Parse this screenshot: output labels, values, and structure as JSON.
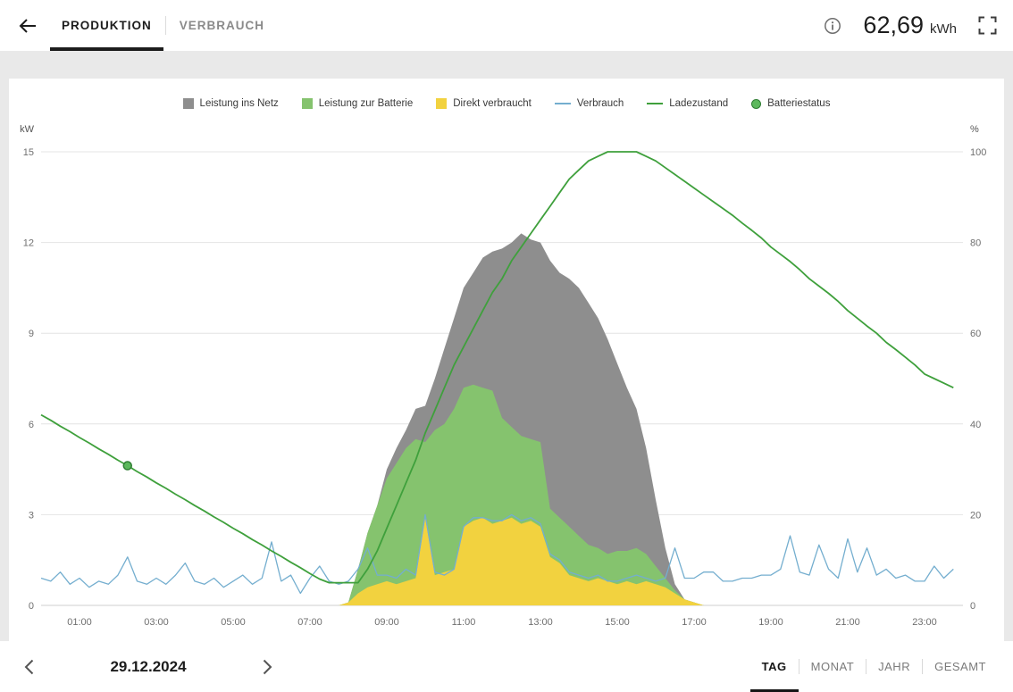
{
  "header": {
    "tabs": [
      {
        "label": "PRODUKTION",
        "active": true
      },
      {
        "label": "VERBRAUCH",
        "active": false
      }
    ],
    "total_value": "62,69",
    "total_unit": "kWh"
  },
  "legend": [
    {
      "label": "Leistung ins Netz",
      "type": "square",
      "color": "#8e8e8e"
    },
    {
      "label": "Leistung zur Batterie",
      "type": "square",
      "color": "#85c36e"
    },
    {
      "label": "Direkt verbraucht",
      "type": "square",
      "color": "#f2d23f"
    },
    {
      "label": "Verbrauch",
      "type": "line",
      "color": "#74aecf"
    },
    {
      "label": "Ladezustand",
      "type": "line",
      "color": "#3fa03c"
    },
    {
      "label": "Batteriestatus",
      "type": "dot",
      "color": "#5cb85c",
      "stroke": "#2e7d32"
    }
  ],
  "footer": {
    "date": "29.12.2024",
    "range_tabs": [
      {
        "label": "TAG",
        "active": true
      },
      {
        "label": "MONAT",
        "active": false
      },
      {
        "label": "JAHR",
        "active": false
      },
      {
        "label": "GESAMT",
        "active": false
      }
    ]
  },
  "chart_data": {
    "type": "area",
    "x_unit": "hour_of_day",
    "x_range": [
      0,
      24
    ],
    "y_left": {
      "unit": "kW",
      "max": 15,
      "ticks": [
        0,
        3,
        6,
        9,
        12,
        15
      ]
    },
    "y_right": {
      "unit": "%",
      "max": 100,
      "ticks": [
        0,
        20,
        40,
        60,
        80,
        100
      ]
    },
    "x_ticks": [
      {
        "t": 1,
        "label": "01:00"
      },
      {
        "t": 3,
        "label": "03:00"
      },
      {
        "t": 5,
        "label": "05:00"
      },
      {
        "t": 7,
        "label": "07:00"
      },
      {
        "t": 9,
        "label": "09:00"
      },
      {
        "t": 11,
        "label": "11:00"
      },
      {
        "t": 13,
        "label": "13:00"
      },
      {
        "t": 15,
        "label": "15:00"
      },
      {
        "t": 17,
        "label": "17:00"
      },
      {
        "t": 19,
        "label": "19:00"
      },
      {
        "t": 21,
        "label": "21:00"
      },
      {
        "t": 23,
        "label": "23:00"
      }
    ],
    "stacking_note": "areas stacked bottom-up: direkt, batterie, netz; lines drawn on top",
    "x": [
      0,
      0.25,
      0.5,
      0.75,
      1,
      1.25,
      1.5,
      1.75,
      2,
      2.25,
      2.5,
      2.75,
      3,
      3.25,
      3.5,
      3.75,
      4,
      4.25,
      4.5,
      4.75,
      5,
      5.25,
      5.5,
      5.75,
      6,
      6.25,
      6.5,
      6.75,
      7,
      7.25,
      7.5,
      7.75,
      8,
      8.25,
      8.5,
      8.75,
      9,
      9.25,
      9.5,
      9.75,
      10,
      10.25,
      10.5,
      10.75,
      11,
      11.25,
      11.5,
      11.75,
      12,
      12.25,
      12.5,
      12.75,
      13,
      13.25,
      13.5,
      13.75,
      14,
      14.25,
      14.5,
      14.75,
      15,
      15.25,
      15.5,
      15.75,
      16,
      16.25,
      16.5,
      16.75,
      17,
      17.25,
      17.5,
      17.75,
      18,
      18.25,
      18.5,
      18.75,
      19,
      19.25,
      19.5,
      19.75,
      20,
      20.25,
      20.5,
      20.75,
      21,
      21.25,
      21.5,
      21.75,
      22,
      22.25,
      22.5,
      22.75,
      23,
      23.25,
      23.5,
      23.75
    ],
    "series": [
      {
        "key": "netz",
        "name": "Leistung ins Netz",
        "type": "area",
        "axis": "kW",
        "color": "#8e8e8e",
        "values": [
          0,
          0,
          0,
          0,
          0,
          0,
          0,
          0,
          0,
          0,
          0,
          0,
          0,
          0,
          0,
          0,
          0,
          0,
          0,
          0,
          0,
          0,
          0,
          0,
          0,
          0,
          0,
          0,
          0,
          0,
          0,
          0,
          0,
          0,
          0,
          0,
          0.3,
          0.5,
          0.6,
          1.0,
          1.2,
          1.7,
          2.5,
          3.0,
          3.3,
          3.7,
          4.3,
          4.6,
          5.6,
          6.1,
          6.7,
          6.6,
          6.6,
          8.2,
          8.1,
          8.2,
          8.2,
          8.0,
          7.6,
          7.1,
          6.2,
          5.4,
          4.6,
          3.5,
          2.2,
          1.0,
          0.2,
          0,
          0,
          0,
          0,
          0,
          0,
          0,
          0,
          0,
          0,
          0,
          0,
          0,
          0,
          0,
          0,
          0,
          0,
          0,
          0,
          0,
          0,
          0,
          0,
          0,
          0,
          0,
          0,
          0
        ]
      },
      {
        "key": "batterie",
        "name": "Leistung zur Batterie",
        "type": "area",
        "axis": "kW",
        "color": "#85c36e",
        "values": [
          0,
          0,
          0,
          0,
          0,
          0,
          0,
          0,
          0,
          0,
          0,
          0,
          0,
          0,
          0,
          0,
          0,
          0,
          0,
          0,
          0,
          0,
          0,
          0,
          0,
          0,
          0,
          0,
          0,
          0,
          0,
          0,
          0,
          0.8,
          1.8,
          2.6,
          3.4,
          4.0,
          4.4,
          4.6,
          2.5,
          4.8,
          4.9,
          5.3,
          4.6,
          4.5,
          4.3,
          4.4,
          3.4,
          3.0,
          2.9,
          2.7,
          2.8,
          1.6,
          1.5,
          1.6,
          1.4,
          1.2,
          1.0,
          0.9,
          1.1,
          1.0,
          1.2,
          0.9,
          0.6,
          0.3,
          0.1,
          0,
          0,
          0,
          0,
          0,
          0,
          0,
          0,
          0,
          0,
          0,
          0,
          0,
          0,
          0,
          0,
          0,
          0,
          0,
          0,
          0,
          0,
          0,
          0,
          0,
          0,
          0,
          0,
          0
        ]
      },
      {
        "key": "direkt",
        "name": "Direkt verbraucht",
        "type": "area",
        "axis": "kW",
        "color": "#f2d23f",
        "values": [
          0,
          0,
          0,
          0,
          0,
          0,
          0,
          0,
          0,
          0,
          0,
          0,
          0,
          0,
          0,
          0,
          0,
          0,
          0,
          0,
          0,
          0,
          0,
          0,
          0,
          0,
          0,
          0,
          0,
          0,
          0,
          0,
          0.1,
          0.4,
          0.6,
          0.7,
          0.8,
          0.7,
          0.8,
          0.9,
          2.9,
          1.0,
          1.1,
          1.2,
          2.6,
          2.8,
          2.9,
          2.7,
          2.8,
          2.9,
          2.7,
          2.8,
          2.6,
          1.6,
          1.4,
          1.0,
          0.9,
          0.8,
          0.9,
          0.8,
          0.7,
          0.8,
          0.7,
          0.8,
          0.7,
          0.6,
          0.4,
          0.2,
          0.1,
          0,
          0,
          0,
          0,
          0,
          0,
          0,
          0,
          0,
          0,
          0,
          0,
          0,
          0,
          0,
          0,
          0,
          0,
          0,
          0,
          0,
          0,
          0,
          0,
          0,
          0,
          0
        ]
      },
      {
        "key": "verbrauch",
        "name": "Verbrauch",
        "type": "line",
        "axis": "kW",
        "color": "#74aecf",
        "values": [
          0.9,
          0.8,
          1.1,
          0.7,
          0.9,
          0.6,
          0.8,
          0.7,
          1.0,
          1.6,
          0.8,
          0.7,
          0.9,
          0.7,
          1.0,
          1.4,
          0.8,
          0.7,
          0.9,
          0.6,
          0.8,
          1.0,
          0.7,
          0.9,
          2.1,
          0.8,
          1.0,
          0.4,
          0.9,
          1.3,
          0.8,
          0.7,
          0.8,
          1.2,
          1.9,
          1.0,
          1.0,
          0.9,
          1.2,
          1.0,
          3.0,
          1.1,
          1.0,
          1.2,
          2.6,
          2.9,
          2.9,
          2.8,
          2.8,
          3.0,
          2.8,
          2.9,
          2.7,
          1.7,
          1.5,
          1.1,
          1.0,
          0.9,
          1.0,
          0.8,
          0.8,
          0.9,
          1.0,
          0.9,
          0.8,
          0.9,
          1.9,
          0.9,
          0.9,
          1.1,
          1.1,
          0.8,
          0.8,
          0.9,
          0.9,
          1.0,
          1.0,
          1.2,
          2.3,
          1.1,
          1.0,
          2.0,
          1.2,
          0.9,
          2.2,
          1.1,
          1.9,
          1.0,
          1.2,
          0.9,
          1.0,
          0.8,
          0.8,
          1.3,
          0.9,
          1.2
        ]
      },
      {
        "key": "ladezustand",
        "name": "Ladezustand",
        "type": "line",
        "axis": "%",
        "color": "#3fa03c",
        "values": [
          42,
          40.8,
          39.5,
          38.3,
          37,
          35.8,
          34.5,
          33.3,
          32,
          30.8,
          29.5,
          28.3,
          27,
          25.8,
          24.5,
          23.3,
          22,
          20.8,
          19.5,
          18.3,
          17,
          15.8,
          14.5,
          13.3,
          12,
          10.8,
          9.5,
          8.3,
          7,
          5.8,
          5,
          5,
          5,
          5,
          8,
          12,
          17,
          22,
          27,
          32,
          38,
          43,
          48,
          53,
          57,
          61,
          65,
          69,
          72,
          76,
          79,
          82,
          85,
          88,
          91,
          94,
          96,
          98,
          99,
          100,
          100,
          100,
          100,
          99,
          98,
          96.5,
          95,
          93.5,
          92,
          90.5,
          89,
          87.5,
          86,
          84.3,
          82.7,
          81,
          79,
          77.4,
          75.8,
          74,
          72,
          70.4,
          68.8,
          67,
          65,
          63.3,
          61.6,
          60,
          58,
          56.4,
          54.7,
          53,
          51,
          50,
          49,
          48
        ]
      }
    ],
    "marker": {
      "name": "Batteriestatus",
      "t": 2.25,
      "value": 30.8,
      "axis": "%",
      "color": "#5cb85c",
      "stroke": "#2e7d32"
    }
  }
}
